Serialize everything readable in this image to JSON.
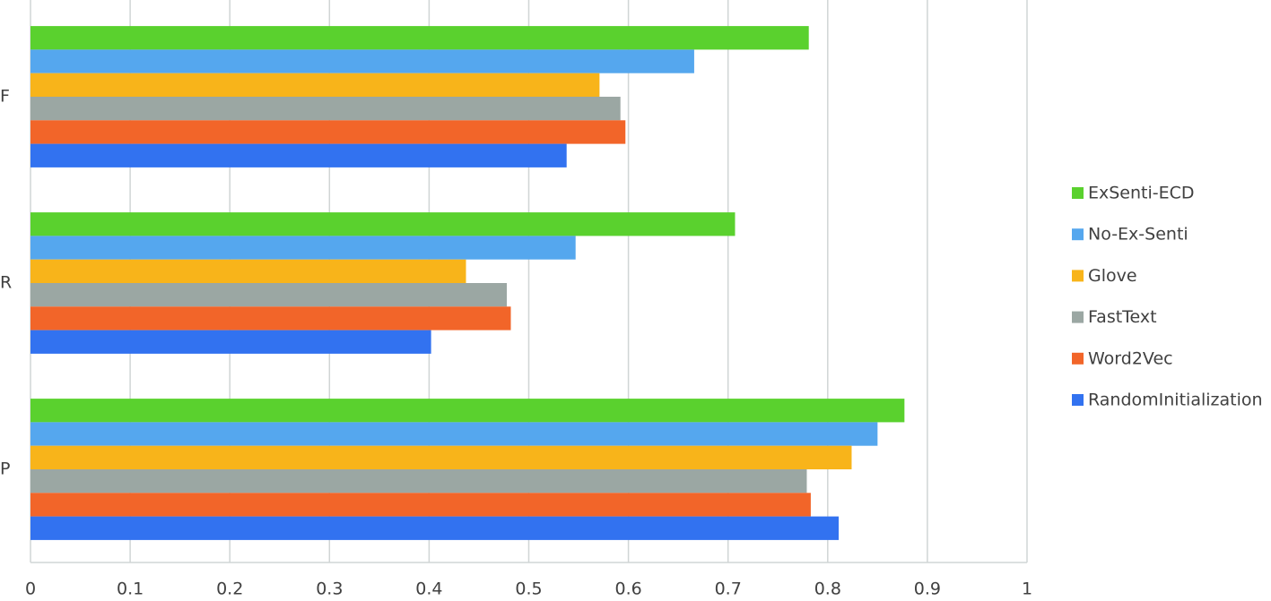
{
  "chart_data": {
    "type": "bar",
    "orientation": "horizontal",
    "categories": [
      "F",
      "R",
      "P"
    ],
    "series": [
      {
        "name": "ExSenti-ECD",
        "color": "#5ad12e",
        "values": [
          0.781,
          0.707,
          0.877
        ]
      },
      {
        "name": "No-Ex-Senti",
        "color": "#55a7ee",
        "values": [
          0.666,
          0.547,
          0.85
        ]
      },
      {
        "name": "Glove",
        "color": "#f8b41a",
        "values": [
          0.571,
          0.437,
          0.824
        ]
      },
      {
        "name": "FastText",
        "color": "#9ba7a3",
        "values": [
          0.592,
          0.478,
          0.779
        ]
      },
      {
        "name": "Word2Vec",
        "color": "#f26529",
        "values": [
          0.597,
          0.482,
          0.783
        ]
      },
      {
        "name": "RandomInitialization",
        "color": "#3272f0",
        "values": [
          0.538,
          0.402,
          0.811
        ]
      }
    ],
    "xlim": [
      0,
      1
    ],
    "xticks": [
      0,
      0.1,
      0.2,
      0.3,
      0.4,
      0.5,
      0.6,
      0.7,
      0.8,
      0.9,
      1
    ],
    "grid": true,
    "legend": "right"
  }
}
